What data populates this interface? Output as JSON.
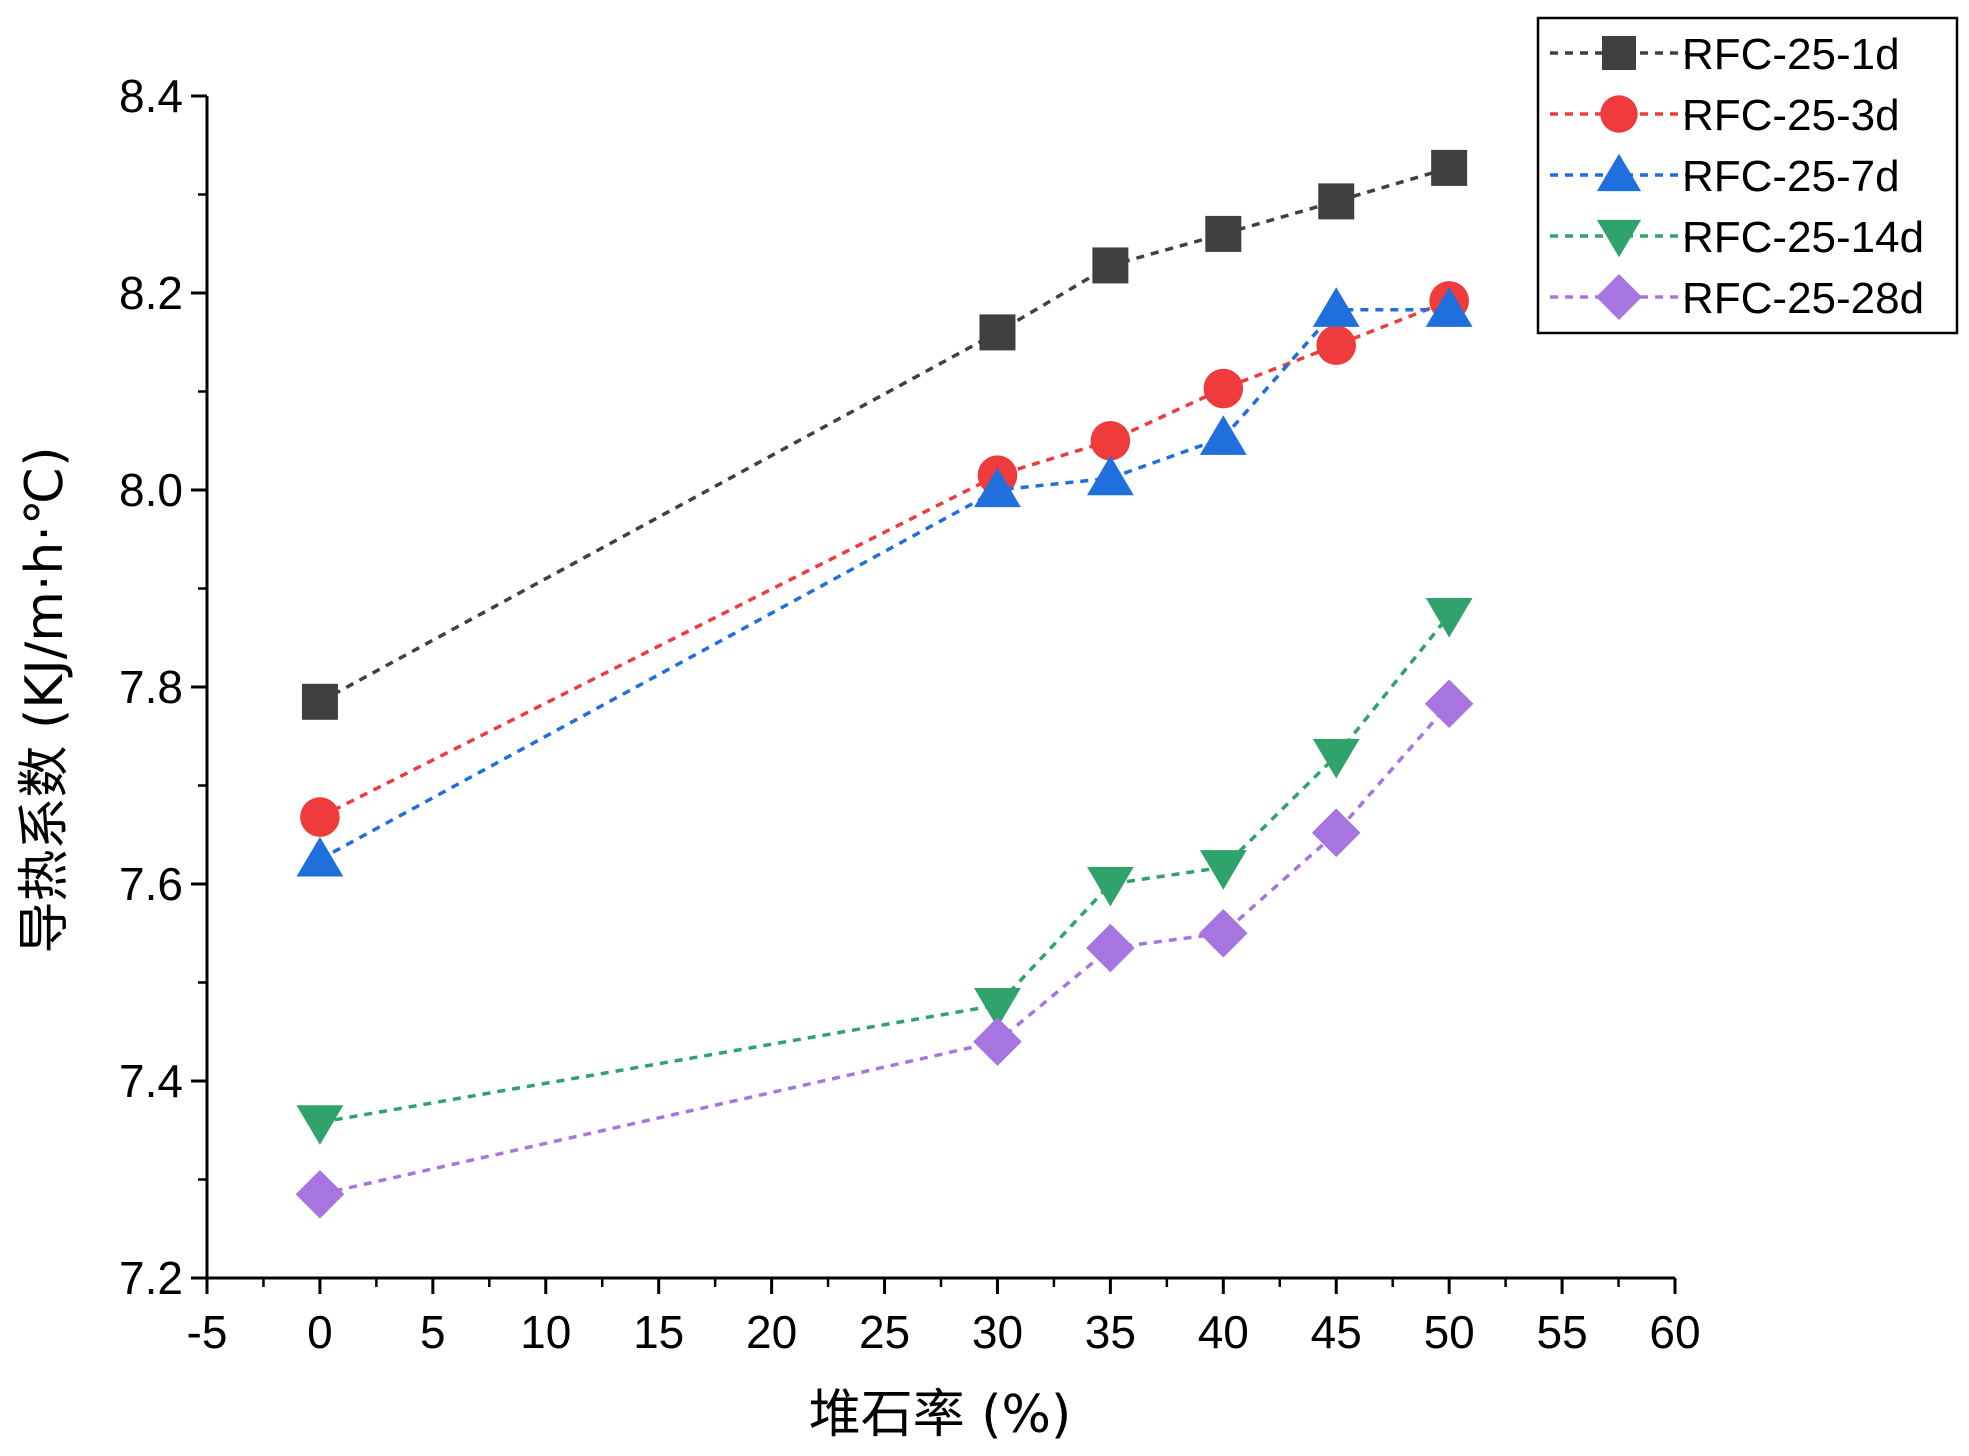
{
  "chart_data": {
    "type": "line",
    "title": "",
    "xlabel": "堆石率 (%)",
    "ylabel": "导热系数 (KJ/m·h·℃)",
    "xlim": [
      -5,
      60
    ],
    "ylim": [
      7.2,
      8.4
    ],
    "x_ticks": [
      -5,
      0,
      5,
      10,
      15,
      20,
      25,
      30,
      35,
      40,
      45,
      50,
      55,
      60
    ],
    "y_ticks": [
      7.2,
      7.4,
      7.6,
      7.8,
      8.0,
      8.2,
      8.4
    ],
    "x_tick_labels": [
      "-5",
      "0",
      "5",
      "10",
      "15",
      "20",
      "25",
      "30",
      "35",
      "40",
      "45",
      "50",
      "55",
      "60"
    ],
    "y_tick_labels": [
      "7.2",
      "7.4",
      "7.6",
      "7.8",
      "8.0",
      "8.2",
      "8.4"
    ],
    "grid": false,
    "legend_position": "top-right",
    "x": [
      0,
      30,
      35,
      40,
      45,
      50
    ],
    "series": [
      {
        "name": "RFC-25-1d",
        "color": "#404040",
        "marker": "square",
        "values": [
          7.785,
          8.16,
          8.228,
          8.26,
          8.293,
          8.327
        ]
      },
      {
        "name": "RFC-25-3d",
        "color": "#ef3b3b",
        "marker": "circle",
        "values": [
          7.668,
          8.015,
          8.05,
          8.103,
          8.147,
          8.192
        ]
      },
      {
        "name": "RFC-25-7d",
        "color": "#1f6fdc",
        "marker": "triangle-up",
        "values": [
          7.625,
          8.0,
          8.012,
          8.053,
          8.183,
          8.183
        ]
      },
      {
        "name": "RFC-25-14d",
        "color": "#2fa36b",
        "marker": "triangle-down",
        "values": [
          7.358,
          7.477,
          7.6,
          7.617,
          7.73,
          7.873
        ]
      },
      {
        "name": "RFC-25-28d",
        "color": "#a775e0",
        "marker": "diamond",
        "values": [
          7.285,
          7.44,
          7.535,
          7.55,
          7.652,
          7.783
        ]
      }
    ]
  }
}
